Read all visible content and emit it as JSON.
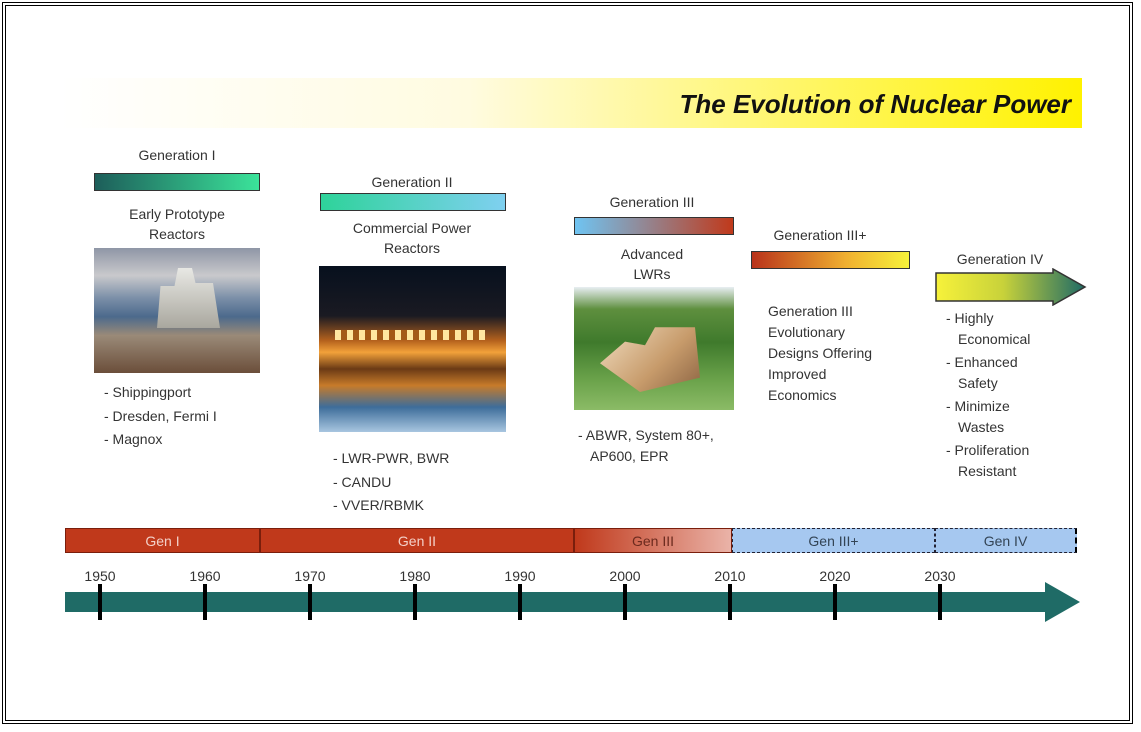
{
  "title": "The Evolution of Nuclear Power",
  "generations": [
    {
      "label": "Generation I",
      "description": [
        "Early Prototype",
        "Reactors"
      ],
      "items": [
        [
          "- Shippingport"
        ],
        [
          "- Dresden, Fermi I"
        ],
        [
          "- Magnox"
        ]
      ]
    },
    {
      "label": "Generation II",
      "description": [
        "Commercial Power",
        "Reactors"
      ],
      "items": [
        [
          "- LWR-PWR, BWR"
        ],
        [
          "- CANDU"
        ],
        [
          "- VVER/RBMK"
        ]
      ]
    },
    {
      "label": "Generation III",
      "description": [
        "Advanced",
        "LWRs"
      ],
      "items": [
        [
          "- ABWR, System 80+,",
          "AP600, EPR"
        ]
      ]
    },
    {
      "label": "Generation III+",
      "description": [
        "Generation III",
        "Evolutionary",
        "Designs Offering",
        "Improved",
        "Economics"
      ]
    },
    {
      "label": "Generation IV",
      "items": [
        [
          "- Highly",
          "Economical"
        ],
        [
          "- Enhanced",
          "Safety"
        ],
        [
          "- Minimize",
          "Wastes"
        ],
        [
          "- Proliferation",
          "Resistant"
        ]
      ]
    }
  ],
  "timeline": {
    "eras": [
      "Gen I",
      "Gen II",
      "Gen III",
      "Gen III+",
      "Gen IV"
    ],
    "years": [
      1950,
      1960,
      1970,
      1980,
      1990,
      2000,
      2010,
      2020,
      2030
    ]
  }
}
